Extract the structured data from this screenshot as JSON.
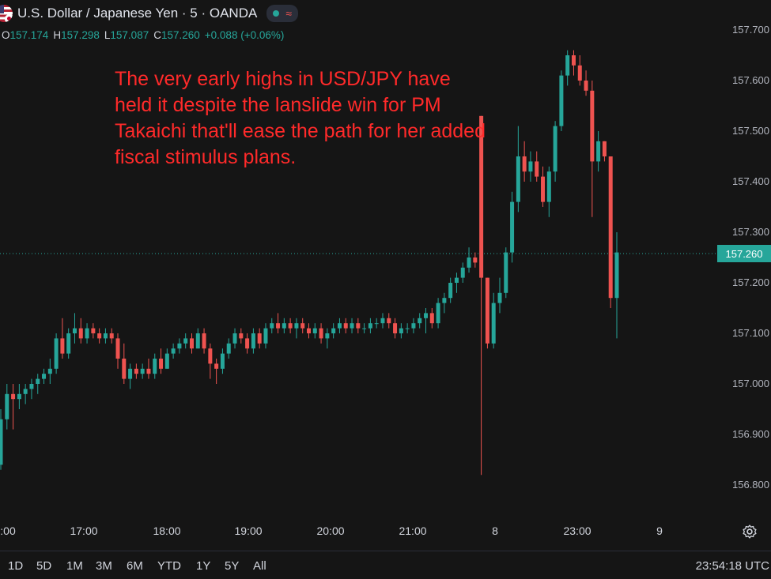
{
  "header": {
    "title": "U.S. Dollar / Japanese Yen · 5 · OANDA",
    "ohlc": [
      {
        "label": "O",
        "value": "157.174"
      },
      {
        "label": "H",
        "value": "157.298"
      },
      {
        "label": "L",
        "value": "157.087"
      },
      {
        "label": "C",
        "value": "157.260"
      }
    ],
    "change": "+0.088 (+0.06%)"
  },
  "annotation": "The very early highs in USD/JPY have held it despite the lanslide win for PM Takaichi that'll ease the path for her added fiscal stimulus plans.",
  "last_price": "157.260",
  "time_ranges": [
    "1D",
    "5D",
    "1M",
    "3M",
    "6M",
    "YTD",
    "1Y",
    "5Y",
    "All"
  ],
  "clock": "23:54:18 UTC",
  "colors": {
    "up": "#26a69a",
    "down": "#ef5350",
    "background": "#151515",
    "annotation": "#ff2a2a"
  },
  "chart_data": {
    "type": "candlestick",
    "y_ticks": [
      "157.700",
      "157.600",
      "157.500",
      "157.400",
      "157.300",
      "157.200",
      "157.100",
      "157.000",
      "156.900",
      "156.800"
    ],
    "x_ticks": [
      ":00",
      "17:00",
      "18:00",
      "19:00",
      "20:00",
      "21:00",
      "8",
      "23:00",
      "9"
    ],
    "ylim": [
      156.75,
      157.75
    ],
    "candles": [
      {
        "o": 156.84,
        "h": 156.95,
        "l": 156.83,
        "c": 156.93
      },
      {
        "o": 156.93,
        "h": 157.0,
        "l": 156.91,
        "c": 156.98
      },
      {
        "o": 156.98,
        "h": 157.0,
        "l": 156.91,
        "c": 156.97
      },
      {
        "o": 156.97,
        "h": 157.0,
        "l": 156.95,
        "c": 156.98
      },
      {
        "o": 156.98,
        "h": 157.0,
        "l": 156.96,
        "c": 156.99
      },
      {
        "o": 156.99,
        "h": 157.01,
        "l": 156.97,
        "c": 157.0
      },
      {
        "o": 157.0,
        "h": 157.02,
        "l": 156.98,
        "c": 157.01
      },
      {
        "o": 157.01,
        "h": 157.03,
        "l": 157.0,
        "c": 157.02
      },
      {
        "o": 157.02,
        "h": 157.05,
        "l": 157.0,
        "c": 157.03
      },
      {
        "o": 157.03,
        "h": 157.1,
        "l": 157.02,
        "c": 157.09
      },
      {
        "o": 157.09,
        "h": 157.13,
        "l": 157.05,
        "c": 157.06
      },
      {
        "o": 157.06,
        "h": 157.11,
        "l": 157.05,
        "c": 157.1
      },
      {
        "o": 157.1,
        "h": 157.14,
        "l": 157.08,
        "c": 157.11
      },
      {
        "o": 157.11,
        "h": 157.13,
        "l": 157.08,
        "c": 157.09
      },
      {
        "o": 157.09,
        "h": 157.12,
        "l": 157.08,
        "c": 157.11
      },
      {
        "o": 157.11,
        "h": 157.12,
        "l": 157.09,
        "c": 157.1
      },
      {
        "o": 157.1,
        "h": 157.11,
        "l": 157.08,
        "c": 157.09
      },
      {
        "o": 157.09,
        "h": 157.11,
        "l": 157.08,
        "c": 157.1
      },
      {
        "o": 157.1,
        "h": 157.11,
        "l": 157.08,
        "c": 157.09
      },
      {
        "o": 157.09,
        "h": 157.1,
        "l": 157.03,
        "c": 157.05
      },
      {
        "o": 157.05,
        "h": 157.08,
        "l": 157.0,
        "c": 157.01
      },
      {
        "o": 157.01,
        "h": 157.04,
        "l": 156.99,
        "c": 157.03
      },
      {
        "o": 157.03,
        "h": 157.04,
        "l": 157.01,
        "c": 157.02
      },
      {
        "o": 157.02,
        "h": 157.04,
        "l": 157.01,
        "c": 157.03
      },
      {
        "o": 157.03,
        "h": 157.05,
        "l": 157.01,
        "c": 157.02
      },
      {
        "o": 157.02,
        "h": 157.06,
        "l": 157.01,
        "c": 157.05
      },
      {
        "o": 157.05,
        "h": 157.07,
        "l": 157.02,
        "c": 157.03
      },
      {
        "o": 157.03,
        "h": 157.07,
        "l": 157.03,
        "c": 157.06
      },
      {
        "o": 157.06,
        "h": 157.08,
        "l": 157.05,
        "c": 157.07
      },
      {
        "o": 157.07,
        "h": 157.09,
        "l": 157.06,
        "c": 157.08
      },
      {
        "o": 157.08,
        "h": 157.1,
        "l": 157.07,
        "c": 157.09
      },
      {
        "o": 157.09,
        "h": 157.1,
        "l": 157.06,
        "c": 157.07
      },
      {
        "o": 157.07,
        "h": 157.11,
        "l": 157.07,
        "c": 157.1
      },
      {
        "o": 157.1,
        "h": 157.11,
        "l": 157.06,
        "c": 157.07
      },
      {
        "o": 157.07,
        "h": 157.08,
        "l": 157.01,
        "c": 157.04
      },
      {
        "o": 157.04,
        "h": 157.05,
        "l": 157.0,
        "c": 157.03
      },
      {
        "o": 157.03,
        "h": 157.07,
        "l": 157.02,
        "c": 157.06
      },
      {
        "o": 157.06,
        "h": 157.09,
        "l": 157.05,
        "c": 157.08
      },
      {
        "o": 157.08,
        "h": 157.11,
        "l": 157.07,
        "c": 157.1
      },
      {
        "o": 157.1,
        "h": 157.11,
        "l": 157.08,
        "c": 157.09
      },
      {
        "o": 157.09,
        "h": 157.1,
        "l": 157.06,
        "c": 157.07
      },
      {
        "o": 157.07,
        "h": 157.11,
        "l": 157.06,
        "c": 157.1
      },
      {
        "o": 157.1,
        "h": 157.11,
        "l": 157.07,
        "c": 157.08
      },
      {
        "o": 157.08,
        "h": 157.12,
        "l": 157.07,
        "c": 157.11
      },
      {
        "o": 157.11,
        "h": 157.13,
        "l": 157.1,
        "c": 157.12
      },
      {
        "o": 157.12,
        "h": 157.14,
        "l": 157.1,
        "c": 157.11
      },
      {
        "o": 157.11,
        "h": 157.13,
        "l": 157.1,
        "c": 157.12
      },
      {
        "o": 157.12,
        "h": 157.13,
        "l": 157.1,
        "c": 157.11
      },
      {
        "o": 157.11,
        "h": 157.13,
        "l": 157.09,
        "c": 157.12
      },
      {
        "o": 157.12,
        "h": 157.13,
        "l": 157.1,
        "c": 157.11
      },
      {
        "o": 157.11,
        "h": 157.12,
        "l": 157.09,
        "c": 157.1
      },
      {
        "o": 157.1,
        "h": 157.12,
        "l": 157.09,
        "c": 157.11
      },
      {
        "o": 157.11,
        "h": 157.12,
        "l": 157.08,
        "c": 157.09
      },
      {
        "o": 157.09,
        "h": 157.11,
        "l": 157.07,
        "c": 157.1
      },
      {
        "o": 157.1,
        "h": 157.12,
        "l": 157.09,
        "c": 157.11
      },
      {
        "o": 157.11,
        "h": 157.13,
        "l": 157.1,
        "c": 157.12
      },
      {
        "o": 157.12,
        "h": 157.13,
        "l": 157.1,
        "c": 157.11
      },
      {
        "o": 157.11,
        "h": 157.13,
        "l": 157.1,
        "c": 157.12
      },
      {
        "o": 157.12,
        "h": 157.13,
        "l": 157.1,
        "c": 157.11
      },
      {
        "o": 157.11,
        "h": 157.12,
        "l": 157.1,
        "c": 157.11
      },
      {
        "o": 157.11,
        "h": 157.13,
        "l": 157.1,
        "c": 157.12
      },
      {
        "o": 157.12,
        "h": 157.13,
        "l": 157.11,
        "c": 157.12
      },
      {
        "o": 157.12,
        "h": 157.14,
        "l": 157.11,
        "c": 157.13
      },
      {
        "o": 157.13,
        "h": 157.14,
        "l": 157.11,
        "c": 157.12
      },
      {
        "o": 157.12,
        "h": 157.13,
        "l": 157.09,
        "c": 157.1
      },
      {
        "o": 157.1,
        "h": 157.12,
        "l": 157.09,
        "c": 157.11
      },
      {
        "o": 157.11,
        "h": 157.12,
        "l": 157.1,
        "c": 157.11
      },
      {
        "o": 157.11,
        "h": 157.13,
        "l": 157.1,
        "c": 157.12
      },
      {
        "o": 157.12,
        "h": 157.14,
        "l": 157.11,
        "c": 157.13
      },
      {
        "o": 157.13,
        "h": 157.15,
        "l": 157.1,
        "c": 157.14
      },
      {
        "o": 157.14,
        "h": 157.15,
        "l": 157.11,
        "c": 157.12
      },
      {
        "o": 157.12,
        "h": 157.17,
        "l": 157.11,
        "c": 157.16
      },
      {
        "o": 157.16,
        "h": 157.18,
        "l": 157.14,
        "c": 157.17
      },
      {
        "o": 157.17,
        "h": 157.21,
        "l": 157.16,
        "c": 157.2
      },
      {
        "o": 157.2,
        "h": 157.22,
        "l": 157.18,
        "c": 157.21
      },
      {
        "o": 157.21,
        "h": 157.24,
        "l": 157.2,
        "c": 157.23
      },
      {
        "o": 157.23,
        "h": 157.27,
        "l": 157.22,
        "c": 157.25
      },
      {
        "o": 157.25,
        "h": 157.26,
        "l": 157.23,
        "c": 157.24
      },
      {
        "o": 157.53,
        "h": 157.53,
        "l": 156.82,
        "c": 157.21
      },
      {
        "o": 157.21,
        "h": 157.21,
        "l": 157.07,
        "c": 157.08
      },
      {
        "o": 157.08,
        "h": 157.18,
        "l": 157.07,
        "c": 157.16
      },
      {
        "o": 157.16,
        "h": 157.21,
        "l": 157.14,
        "c": 157.18
      },
      {
        "o": 157.18,
        "h": 157.27,
        "l": 157.17,
        "c": 157.26
      },
      {
        "o": 157.26,
        "h": 157.38,
        "l": 157.24,
        "c": 157.36
      },
      {
        "o": 157.36,
        "h": 157.51,
        "l": 157.34,
        "c": 157.45
      },
      {
        "o": 157.45,
        "h": 157.48,
        "l": 157.4,
        "c": 157.42
      },
      {
        "o": 157.42,
        "h": 157.46,
        "l": 157.4,
        "c": 157.44
      },
      {
        "o": 157.44,
        "h": 157.46,
        "l": 157.4,
        "c": 157.41
      },
      {
        "o": 157.41,
        "h": 157.43,
        "l": 157.35,
        "c": 157.36
      },
      {
        "o": 157.36,
        "h": 157.43,
        "l": 157.33,
        "c": 157.42
      },
      {
        "o": 157.42,
        "h": 157.52,
        "l": 157.4,
        "c": 157.51
      },
      {
        "o": 157.51,
        "h": 157.62,
        "l": 157.5,
        "c": 157.61
      },
      {
        "o": 157.61,
        "h": 157.66,
        "l": 157.59,
        "c": 157.65
      },
      {
        "o": 157.65,
        "h": 157.66,
        "l": 157.61,
        "c": 157.63
      },
      {
        "o": 157.63,
        "h": 157.65,
        "l": 157.59,
        "c": 157.6
      },
      {
        "o": 157.6,
        "h": 157.62,
        "l": 157.57,
        "c": 157.58
      },
      {
        "o": 157.58,
        "h": 157.6,
        "l": 157.33,
        "c": 157.44
      },
      {
        "o": 157.44,
        "h": 157.5,
        "l": 157.42,
        "c": 157.48
      },
      {
        "o": 157.48,
        "h": 157.48,
        "l": 157.44,
        "c": 157.45
      },
      {
        "o": 157.45,
        "h": 157.45,
        "l": 157.15,
        "c": 157.17
      },
      {
        "o": 157.17,
        "h": 157.3,
        "l": 157.09,
        "c": 157.26
      }
    ]
  }
}
